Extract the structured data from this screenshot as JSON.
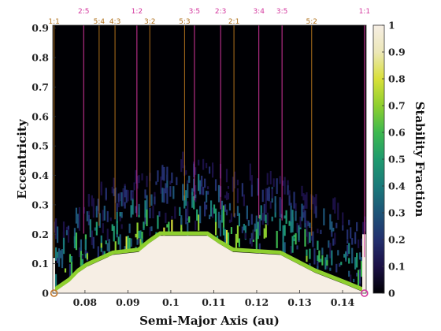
{
  "chart_data": {
    "type": "heatmap",
    "title": "",
    "xlabel": "Semi-Major Axis (au)",
    "ylabel": "Eccentricity",
    "colorbar_label": "Stability Fraction",
    "xlim": [
      0.0725,
      0.1455
    ],
    "ylim": [
      0,
      0.91
    ],
    "clim": [
      0,
      1
    ],
    "x_ticks": [
      0.08,
      0.09,
      0.1,
      0.11,
      0.12,
      0.13,
      0.14
    ],
    "x_tick_labels": [
      "0.08",
      "0.09",
      "0.1",
      "0.11",
      "0.12",
      "0.13",
      "0.14"
    ],
    "y_ticks": [
      0,
      0.1,
      0.2,
      0.3,
      0.4,
      0.5,
      0.6,
      0.7,
      0.8,
      0.9
    ],
    "y_tick_labels": [
      "0",
      "0.1",
      "0.2",
      "0.3",
      "0.4",
      "0.5",
      "0.6",
      "0.7",
      "0.8",
      "0.9"
    ],
    "colorbar_ticks": [
      0,
      0.1,
      0.2,
      0.3,
      0.4,
      0.5,
      0.6,
      0.7,
      0.8,
      0.9,
      1
    ],
    "colorbar_tick_labels": [
      "0",
      "0.1",
      "0.2",
      "0.3",
      "0.4",
      "0.5",
      "0.6",
      "0.7",
      "0.8",
      "0.9",
      "1"
    ],
    "colormap": [
      "#000004",
      "#1b1045",
      "#232f6e",
      "#1d5477",
      "#1a7a7a",
      "#1f9a6e",
      "#3db84f",
      "#8ecf2e",
      "#d9e03a",
      "#ece7b8",
      "#f6eee4"
    ],
    "stable_boundary": [
      {
        "x": 0.0725,
        "e": 0.0
      },
      {
        "x": 0.0745,
        "e": 0.02
      },
      {
        "x": 0.0765,
        "e": 0.04
      },
      {
        "x": 0.0785,
        "e": 0.07
      },
      {
        "x": 0.0805,
        "e": 0.09
      },
      {
        "x": 0.0835,
        "e": 0.11
      },
      {
        "x": 0.0865,
        "e": 0.13
      },
      {
        "x": 0.0925,
        "e": 0.14
      },
      {
        "x": 0.095,
        "e": 0.17
      },
      {
        "x": 0.0975,
        "e": 0.195
      },
      {
        "x": 0.1085,
        "e": 0.195
      },
      {
        "x": 0.111,
        "e": 0.17
      },
      {
        "x": 0.1145,
        "e": 0.14
      },
      {
        "x": 0.1255,
        "e": 0.13
      },
      {
        "x": 0.1295,
        "e": 0.1
      },
      {
        "x": 0.1335,
        "e": 0.07
      },
      {
        "x": 0.137,
        "e": 0.05
      },
      {
        "x": 0.1405,
        "e": 0.03
      },
      {
        "x": 0.1455,
        "e": 0.0
      }
    ],
    "stable_edge_left": {
      "x": 0.0725,
      "e_top": 0.12
    },
    "stable_edge_right": {
      "x": 0.1455,
      "e_top": 0.2
    },
    "resonances": [
      {
        "label": "1:1",
        "x": 0.0728,
        "color": "#b0711c",
        "row": "bottom"
      },
      {
        "label": "2:5",
        "x": 0.0797,
        "color": "#d3369d",
        "row": "top"
      },
      {
        "label": "5:4",
        "x": 0.0833,
        "color": "#b0711c",
        "row": "bottom"
      },
      {
        "label": "4:3",
        "x": 0.087,
        "color": "#b0711c",
        "row": "bottom"
      },
      {
        "label": "1:2",
        "x": 0.0921,
        "color": "#d3369d",
        "row": "top"
      },
      {
        "label": "3:2",
        "x": 0.0951,
        "color": "#b0711c",
        "row": "bottom"
      },
      {
        "label": "5:3",
        "x": 0.1032,
        "color": "#b0711c",
        "row": "bottom"
      },
      {
        "label": "3:5",
        "x": 0.1055,
        "color": "#d3369d",
        "row": "top"
      },
      {
        "label": "2:3",
        "x": 0.1116,
        "color": "#d3369d",
        "row": "top"
      },
      {
        "label": "2:1",
        "x": 0.1147,
        "color": "#b0711c",
        "row": "bottom"
      },
      {
        "label": "3:4",
        "x": 0.1205,
        "color": "#d3369d",
        "row": "top"
      },
      {
        "label": "3:5",
        "x": 0.1259,
        "color": "#d3369d",
        "row": "top"
      },
      {
        "label": "5:2",
        "x": 0.1328,
        "color": "#b0711c",
        "row": "bottom"
      },
      {
        "label": "1:1",
        "x": 0.1451,
        "color": "#d3369d",
        "row": "top"
      }
    ],
    "markers": [
      {
        "x": 0.0728,
        "e": 0.0,
        "shape": "circle",
        "color": "#c0762a"
      },
      {
        "x": 0.1451,
        "e": 0.0,
        "shape": "circle",
        "color": "#d3369d"
      }
    ]
  }
}
